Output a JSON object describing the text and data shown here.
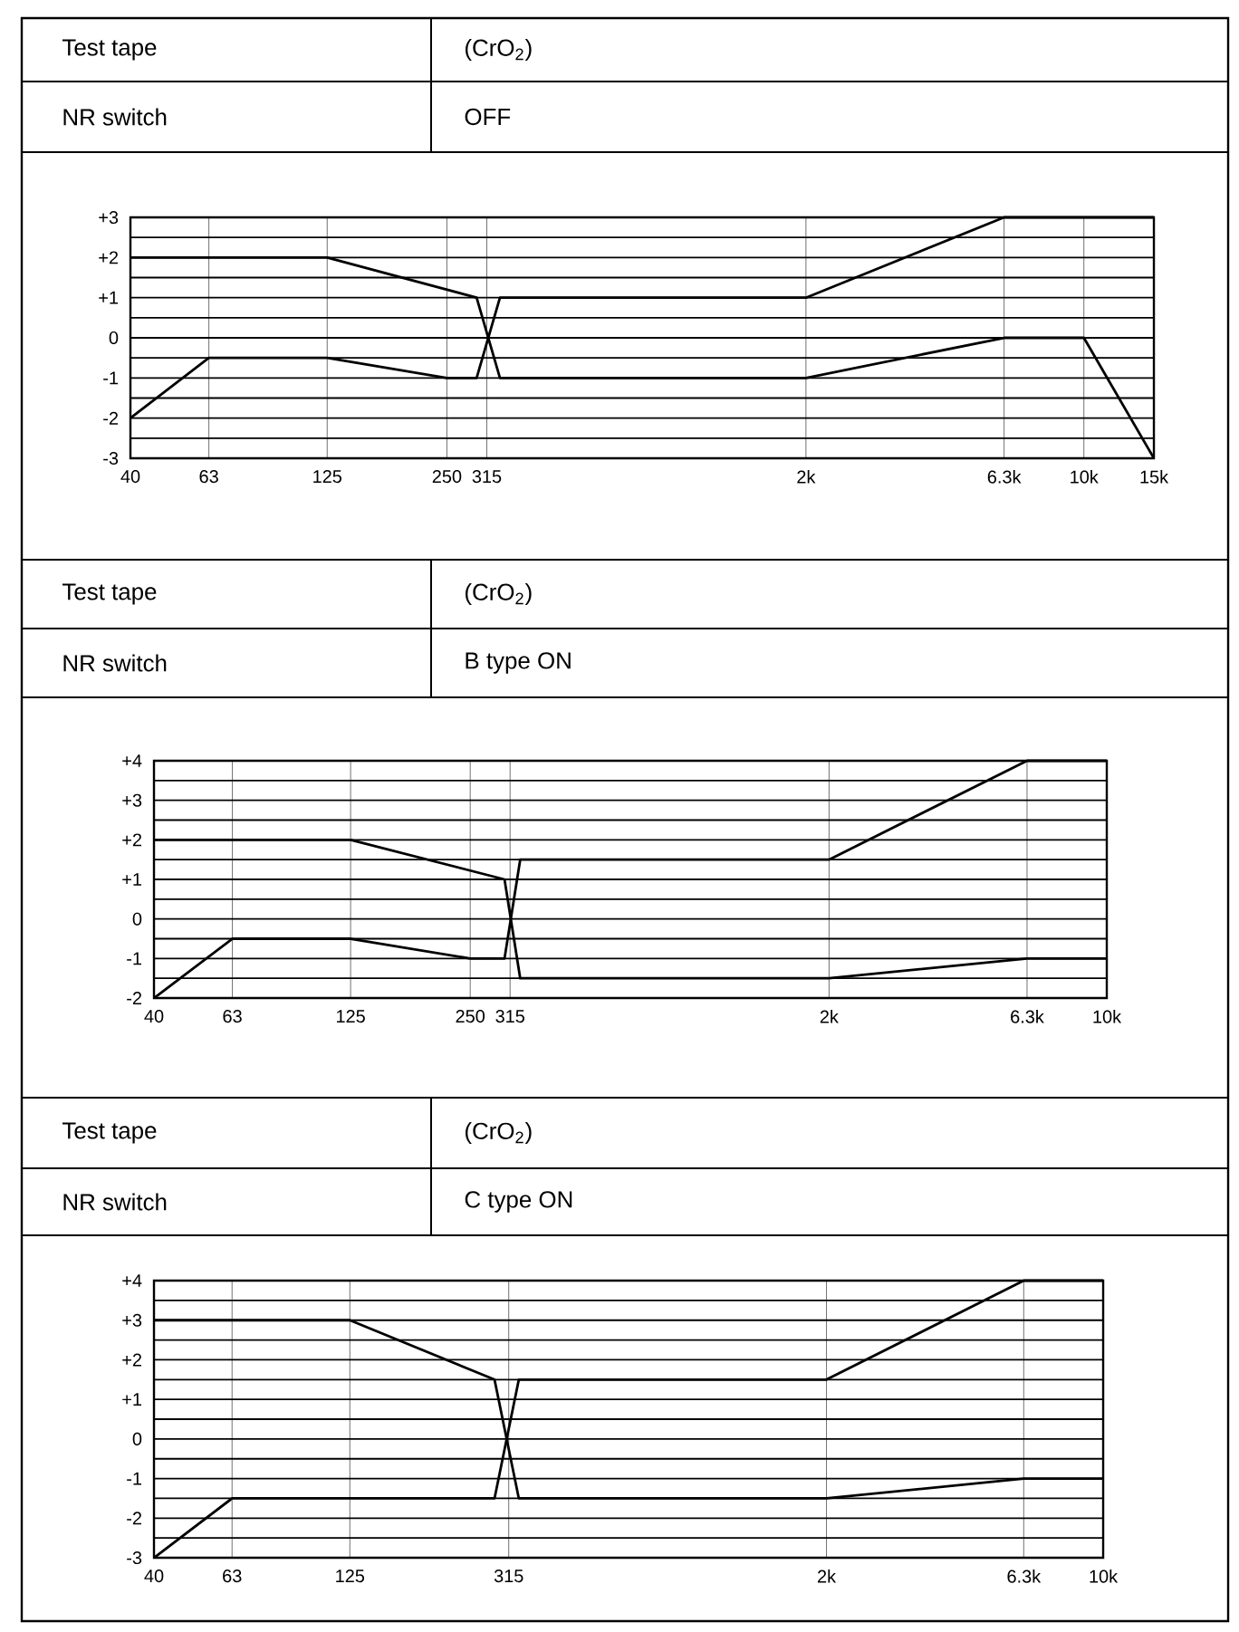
{
  "chart_data": [
    {
      "type": "line",
      "log": "x",
      "grid": true,
      "marker": "none",
      "line_style": "solid",
      "annotations": [
        "Test tape",
        "(CrO$_{2}$)",
        "NR switch",
        "OFF"
      ],
      "xlim": [
        40,
        15000
      ],
      "ylim": [
        -3,
        3
      ],
      "xticks": [
        40,
        63,
        125,
        250,
        315,
        {
          "value": 2000,
          "label": "2k"
        },
        {
          "value": 6300,
          "label": "6.3k"
        },
        {
          "value": 10000,
          "label": "10k"
        },
        {
          "value": 15000,
          "label": "15k"
        }
      ],
      "yticks": [
        -3,
        {
          "value": -2.5,
          "label": null
        },
        -2,
        {
          "value": -1.5,
          "label": null
        },
        -1,
        {
          "value": -0.5,
          "label": null
        },
        0,
        {
          "value": 0.5,
          "label": null
        },
        {
          "value": 1,
          "label": "+1"
        },
        {
          "value": 1.5,
          "label": null
        },
        {
          "value": 2,
          "label": "+2"
        },
        {
          "value": 2.5,
          "label": null
        },
        {
          "value": 3,
          "label": "+3"
        }
      ],
      "series": [
        {
          "color": "#000000",
          "x": [
            40,
            125,
            297,
            340,
            2000,
            6300,
            10000,
            15000
          ],
          "values": [
            2,
            2,
            1,
            -1,
            -1,
            0,
            0,
            -3
          ]
        },
        {
          "color": "#000000",
          "x": [
            40,
            63,
            125,
            250,
            297,
            340,
            2000,
            6300,
            15000
          ],
          "values": [
            -2,
            -0.5,
            -0.5,
            -1,
            -1,
            1,
            1,
            3,
            3
          ]
        }
      ]
    },
    {
      "type": "line",
      "log": "x",
      "grid": true,
      "marker": "none",
      "line_style": "solid",
      "annotations": [
        "Test tape",
        "(CrO$_{2}$)",
        "NR switch",
        "B type ON"
      ],
      "xlim": [
        40,
        10000
      ],
      "ylim": [
        -2,
        4
      ],
      "xticks": [
        40,
        63,
        125,
        250,
        315,
        {
          "value": 2000,
          "label": "2k"
        },
        {
          "value": 6300,
          "label": "6.3k"
        },
        {
          "value": 10000,
          "label": "10k"
        }
      ],
      "yticks": [
        -2,
        {
          "value": -1.5,
          "label": null
        },
        -1,
        {
          "value": -0.5,
          "label": null
        },
        0,
        {
          "value": 0.5,
          "label": null
        },
        {
          "value": 1,
          "label": "+1"
        },
        {
          "value": 1.5,
          "label": null
        },
        {
          "value": 2,
          "label": "+2"
        },
        {
          "value": 2.5,
          "label": null
        },
        {
          "value": 3,
          "label": "+3"
        },
        {
          "value": 3.5,
          "label": null
        },
        {
          "value": 4,
          "label": "+4"
        }
      ],
      "series": [
        {
          "color": "#000000",
          "x": [
            40,
            125,
            305,
            334,
            2000,
            6300,
            10000
          ],
          "values": [
            2,
            2,
            1,
            -1.5,
            -1.5,
            -1,
            -1
          ]
        },
        {
          "color": "#000000",
          "x": [
            40,
            63,
            125,
            250,
            305,
            334,
            2000,
            6300,
            10000
          ],
          "values": [
            -2,
            -0.5,
            -0.5,
            -1,
            -1,
            1.5,
            1.5,
            4,
            4
          ]
        }
      ]
    },
    {
      "type": "line",
      "log": "x",
      "grid": true,
      "marker": "none",
      "line_style": "solid",
      "annotations": [
        "Test tape",
        "(CrO$_{2}$)",
        "NR switch",
        "C type ON"
      ],
      "xlim": [
        40,
        10000
      ],
      "ylim": [
        -3,
        4
      ],
      "xticks": [
        40,
        63,
        125,
        315,
        {
          "value": 2000,
          "label": "2k"
        },
        {
          "value": 6300,
          "label": "6.3k"
        },
        {
          "value": 10000,
          "label": "10k"
        }
      ],
      "yticks": [
        -3,
        {
          "value": -2.5,
          "label": null
        },
        -2,
        {
          "value": -1.5,
          "label": null
        },
        -1,
        {
          "value": -0.5,
          "label": null
        },
        0,
        {
          "value": 0.5,
          "label": null
        },
        {
          "value": 1,
          "label": "+1"
        },
        {
          "value": 1.5,
          "label": null
        },
        {
          "value": 2,
          "label": "+2"
        },
        {
          "value": 2.5,
          "label": null
        },
        {
          "value": 3,
          "label": "+3"
        },
        {
          "value": 3.5,
          "label": null
        },
        {
          "value": 4,
          "label": "+4"
        }
      ],
      "series": [
        {
          "color": "#000000",
          "x": [
            40,
            125,
            290,
            334,
            2000,
            6300,
            10000
          ],
          "values": [
            3,
            3,
            1.5,
            -1.5,
            -1.5,
            -1,
            -1
          ]
        },
        {
          "color": "#000000",
          "x": [
            40,
            63,
            290,
            334,
            2000,
            6300,
            10000
          ],
          "values": [
            -3,
            -1.5,
            -1.5,
            1.5,
            1.5,
            4,
            4
          ]
        }
      ]
    }
  ]
}
